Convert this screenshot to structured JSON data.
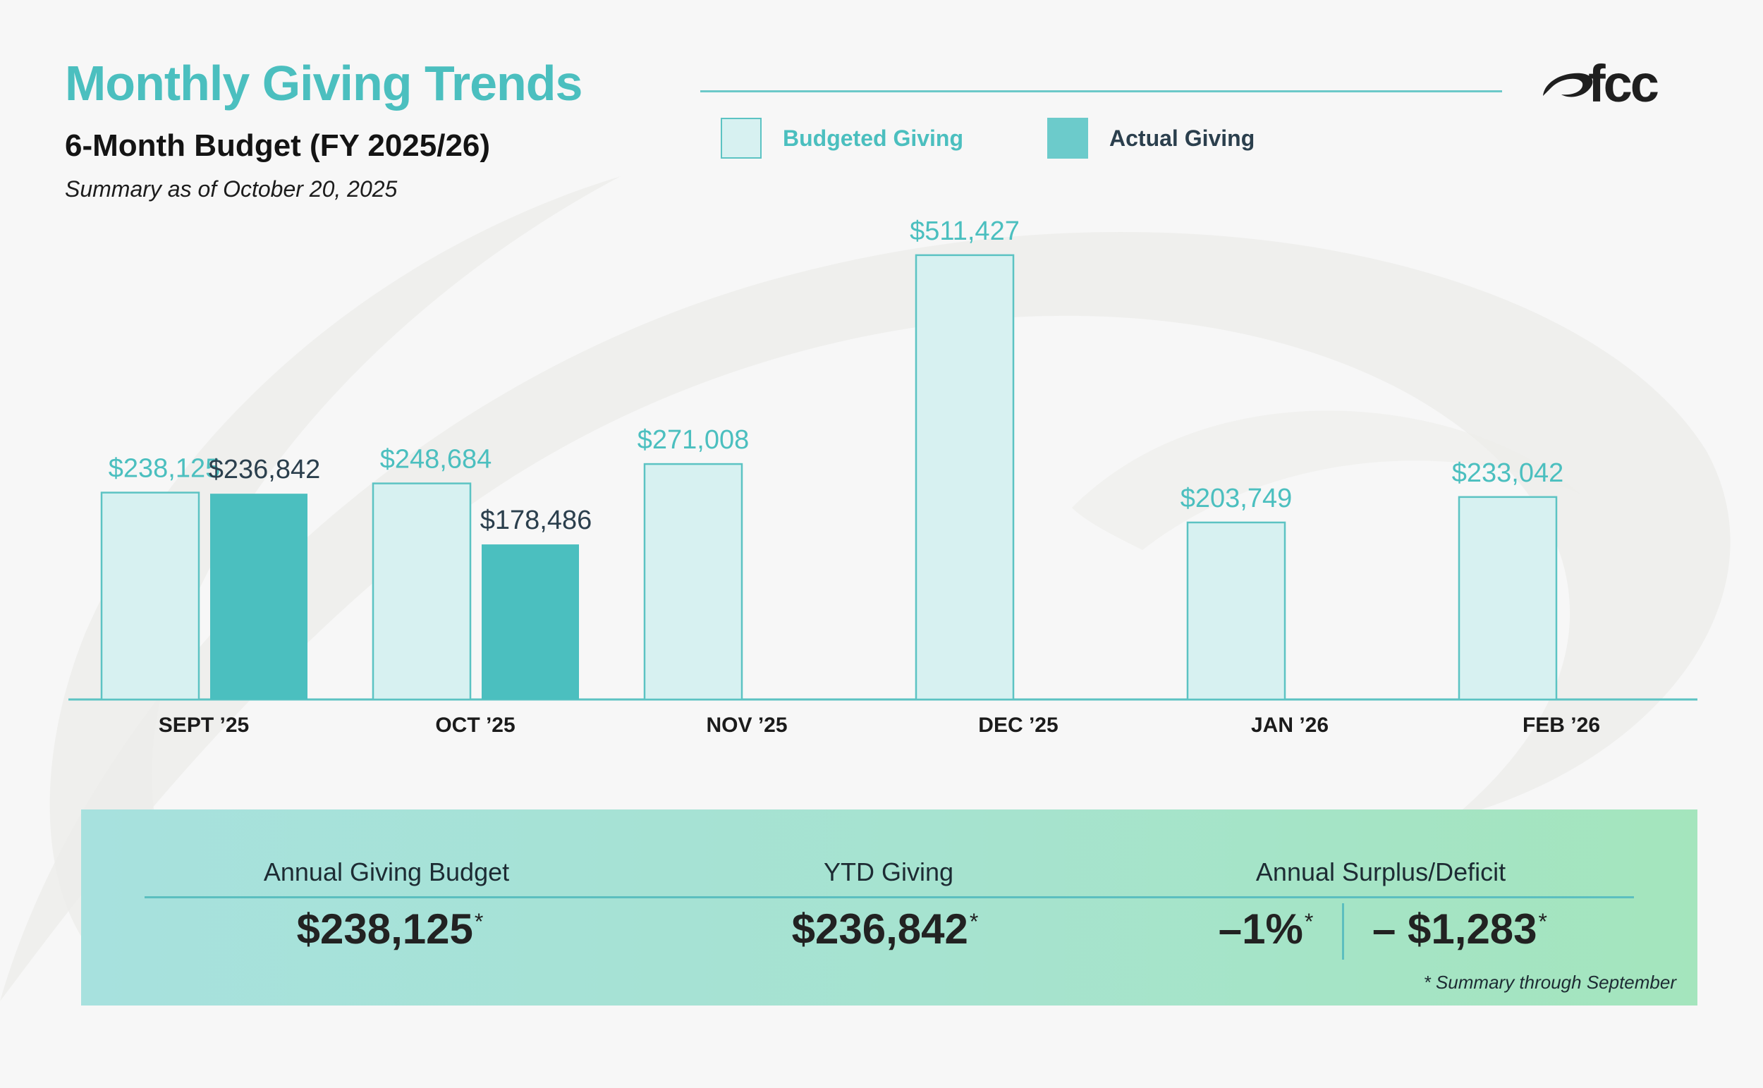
{
  "header": {
    "title": "Monthly Giving Trends",
    "subtitle": "6-Month Budget (FY 2025/26)",
    "date_note": "Summary as of October 20, 2025",
    "logo_text": "fcc"
  },
  "colors": {
    "accent": "#4bbfbf",
    "budget_fill": "#d7f1f1",
    "budget_stroke": "#5cc3c3",
    "actual_fill": "#4bbfbf",
    "budget_label": "#4bbfbf",
    "actual_label": "#2b3f4d",
    "axis": "#5cc3c3"
  },
  "chart_data": {
    "type": "bar",
    "categories": [
      "SEPT ’25",
      "OCT ’25",
      "NOV ’25",
      "DEC ’25",
      "JAN ’26",
      "FEB ’26"
    ],
    "series": [
      {
        "name": "Budgeted Giving",
        "values": [
          238125,
          248684,
          271008,
          511427,
          203749,
          233042
        ]
      },
      {
        "name": "Actual Giving",
        "values": [
          236842,
          178486,
          null,
          null,
          null,
          null
        ]
      }
    ],
    "data_labels": [
      [
        "$238,125",
        "$248,684",
        "$271,008",
        "$511,427",
        "$203,749",
        "$233,042"
      ],
      [
        "$236,842",
        "$178,486",
        "",
        "",
        "",
        ""
      ]
    ],
    "legend": "top",
    "grid": false,
    "ylim": [
      0,
      560000
    ]
  },
  "legend": {
    "budgeted": "Budgeted Giving",
    "actual": "Actual Giving"
  },
  "summary": {
    "budget_label": "Annual Giving Budget",
    "budget_value": "$238,125",
    "ytd_label": "YTD Giving",
    "ytd_value": "$236,842",
    "surplus_label": "Annual Surplus/Deficit",
    "surplus_percent": "–1%",
    "surplus_amount": "– $1,283",
    "star": "*",
    "footnote": "*  Summary through September"
  }
}
